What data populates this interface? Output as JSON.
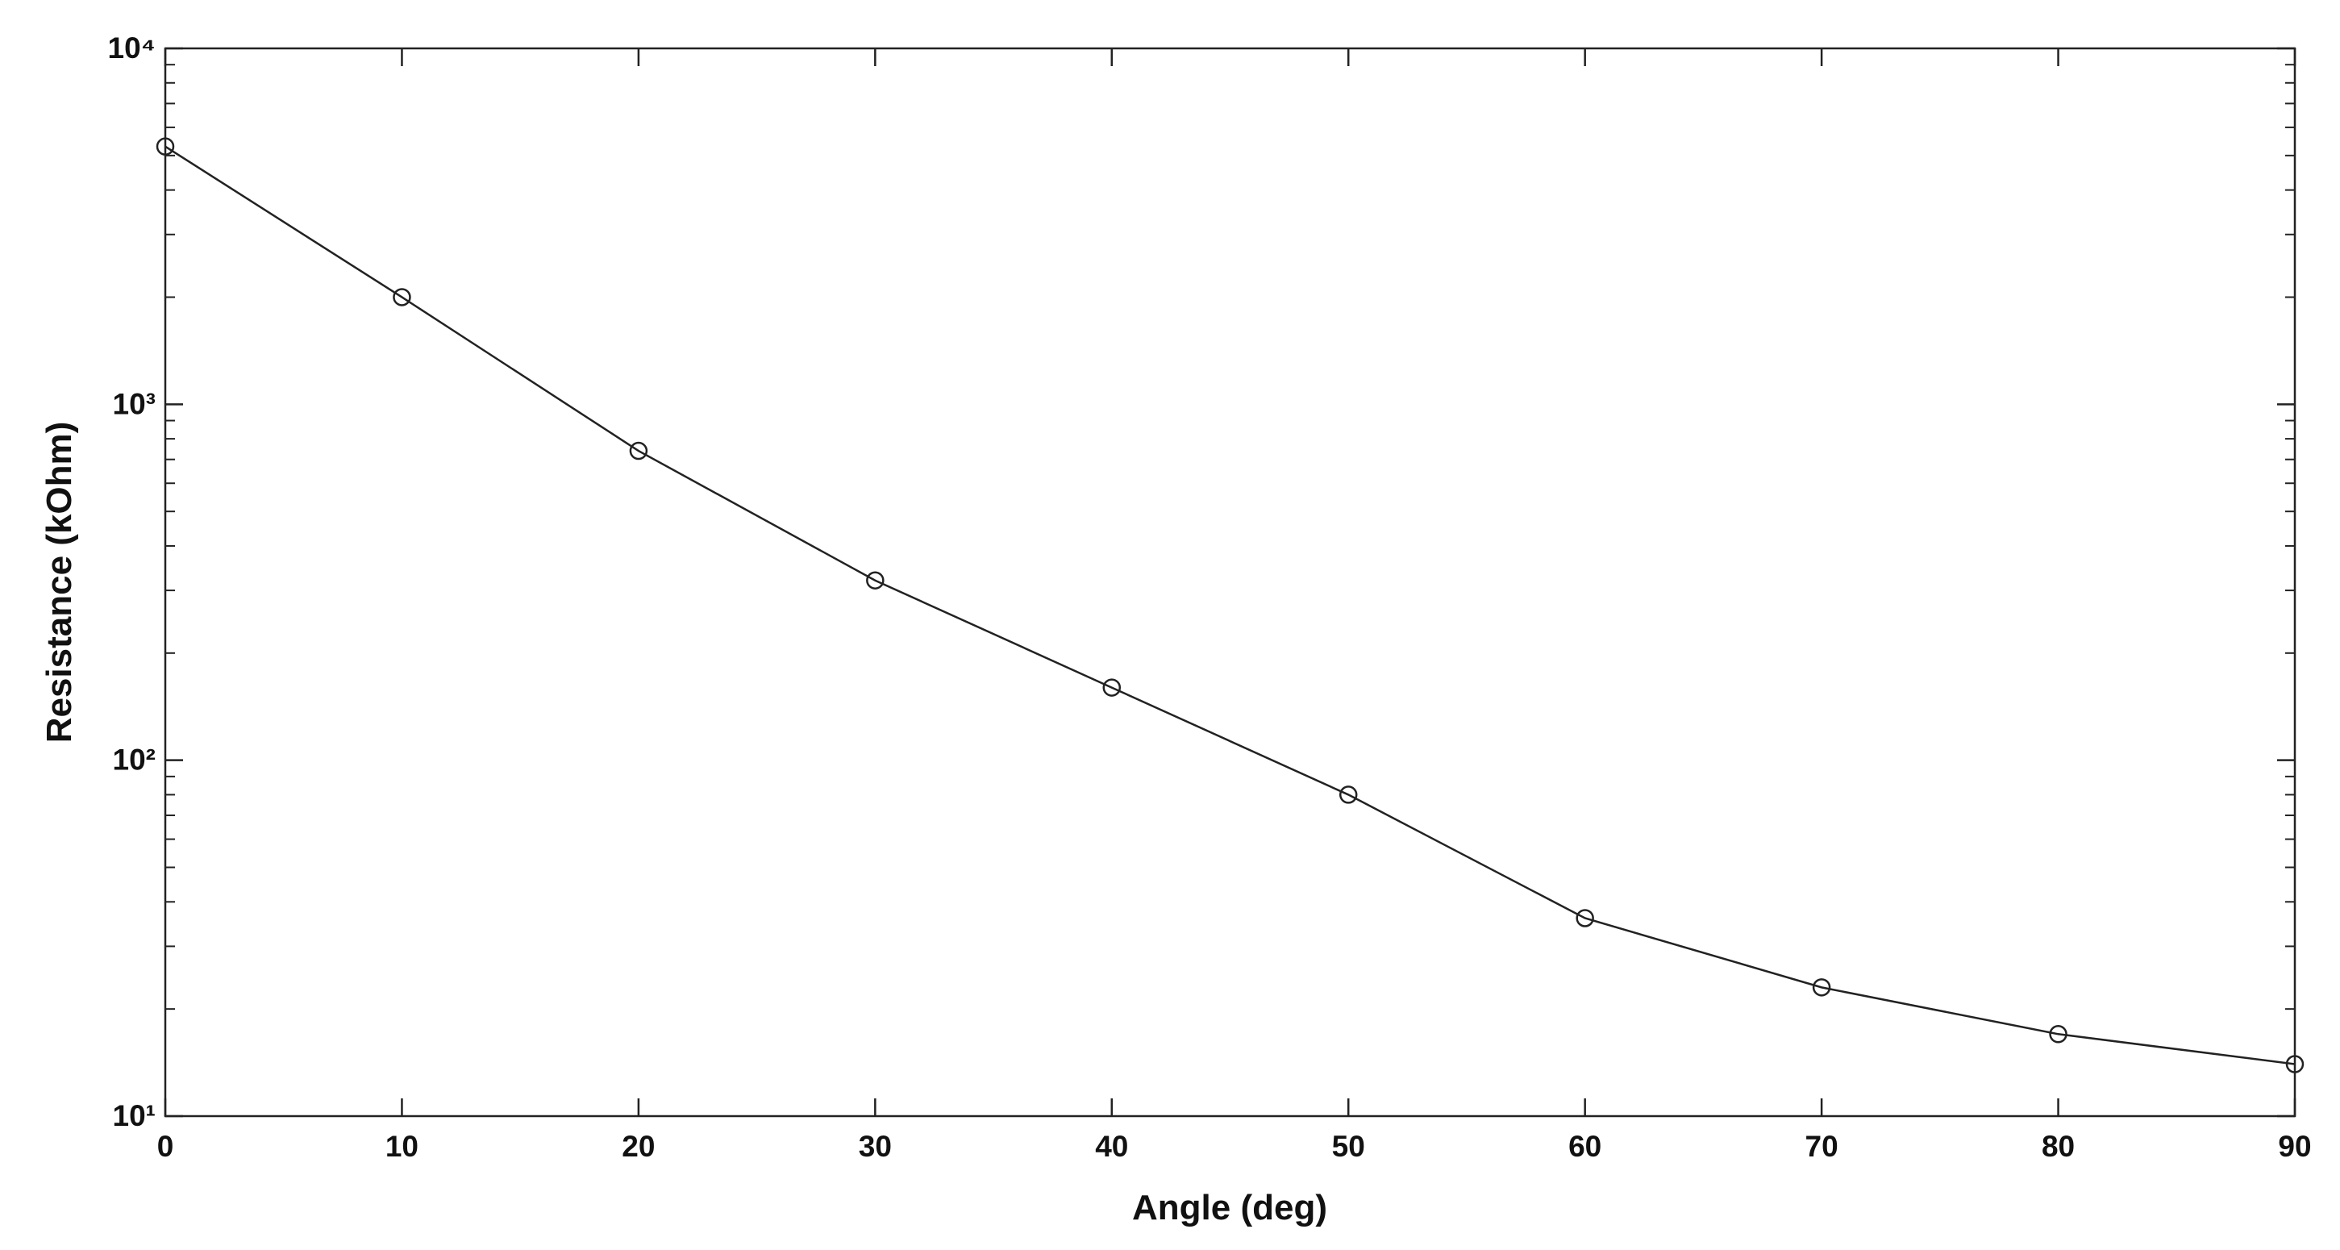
{
  "chart_data": {
    "type": "line",
    "xlabel": "Angle (deg)",
    "ylabel": "Resistance (kOhm)",
    "x": [
      0,
      10,
      20,
      30,
      40,
      50,
      60,
      70,
      80,
      90
    ],
    "values": [
      5300,
      2000,
      740,
      320,
      160,
      80,
      36,
      23,
      17,
      14
    ],
    "color": "#222222",
    "marker": "circle",
    "xlim": [
      0,
      90
    ],
    "xticks": [
      0,
      10,
      20,
      30,
      40,
      50,
      60,
      70,
      80,
      90
    ],
    "ylim": [
      10,
      10000
    ],
    "ylog": true,
    "yticks": [
      {
        "value": 10,
        "label": "10¹"
      },
      {
        "value": 100,
        "label": "10²"
      },
      {
        "value": 1000,
        "label": "10³"
      },
      {
        "value": 10000,
        "label": "10⁴"
      }
    ],
    "grid": false
  }
}
